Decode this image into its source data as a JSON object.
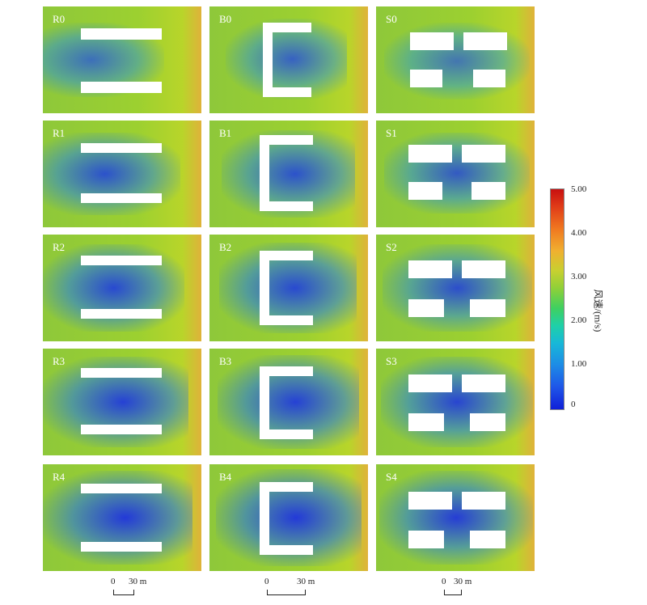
{
  "panels": {
    "R0": "R0",
    "B0": "B0",
    "S0": "S0",
    "R1": "R1",
    "B1": "B1",
    "S1": "S1",
    "R2": "R2",
    "B2": "B2",
    "S2": "S2",
    "R3": "R3",
    "B3": "B3",
    "S3": "S3",
    "R4": "R4",
    "B4": "B4",
    "S4": "S4"
  },
  "colorbar": {
    "title": "风速/(m/s)",
    "ticks": [
      "5.00",
      "4.00",
      "3.00",
      "2.00",
      "1.00",
      "0"
    ],
    "colors": [
      "#1020d8",
      "#1d8be6",
      "#1fd0a8",
      "#8fd038",
      "#f0b030",
      "#c81010"
    ]
  },
  "scale_bars": [
    {
      "zero": "0",
      "label": "30 m"
    },
    {
      "zero": "0",
      "label": "30 m"
    },
    {
      "zero": "0",
      "label": "30 m"
    }
  ]
}
